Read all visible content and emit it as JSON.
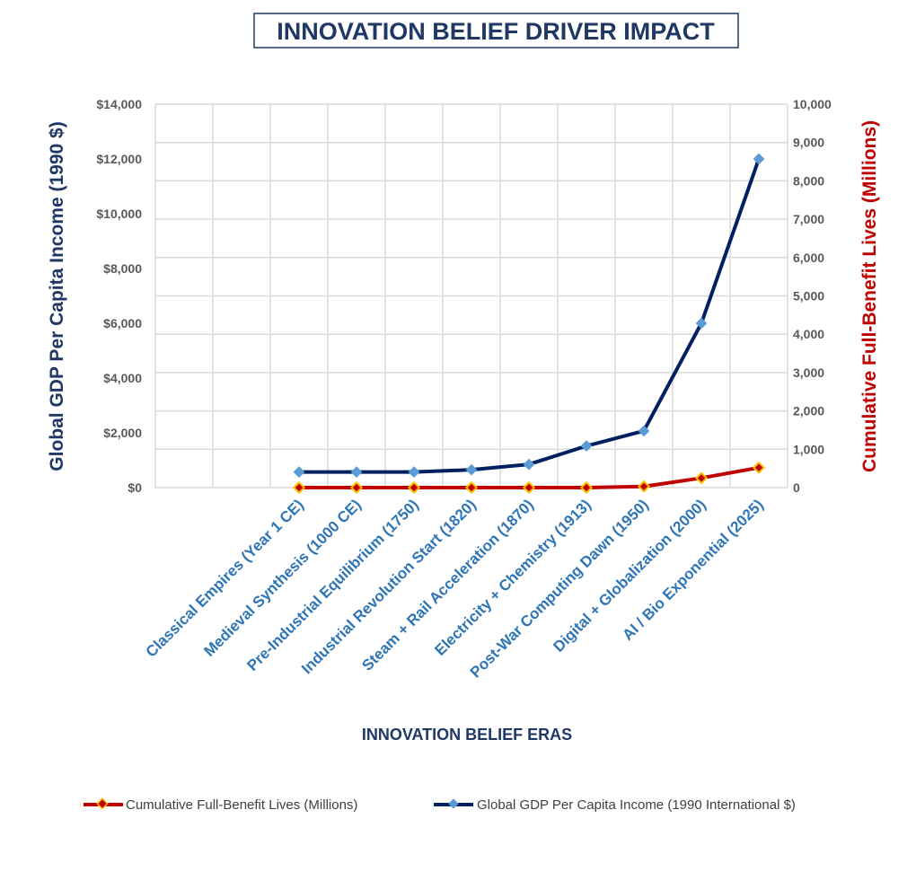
{
  "chart_data": {
    "type": "line",
    "title": "INNOVATION BELIEF DRIVER IMPACT",
    "xlabel": "INNOVATION BELIEF ERAS",
    "ylabel": "Global GDP Per Capita Income (1990 $)",
    "y2label": "Cumulative Full-Benefit Lives (Millions)",
    "categories": [
      "",
      "",
      "Classical Empires (Year 1 CE)",
      "Medieval Synthesis (1000 CE)",
      "Pre-Industrial Equilibrium (1750)",
      "Industrial Revolution Start (1820)",
      "Steam + Rail Acceleration (1870)",
      "Electricity + Chemistry (1913)",
      "Post-War Computing Dawn (1950)",
      "Digital + Globalization (2000)",
      "AI / Bio Exponential (2025)"
    ],
    "ylim": [
      0,
      14000
    ],
    "y2lim": [
      0,
      10000
    ],
    "yticks": [
      "$0",
      "$2,000",
      "$4,000",
      "$6,000",
      "$8,000",
      "$10,000",
      "$12,000",
      "$14,000"
    ],
    "y2ticks": [
      "0",
      "1,000",
      "2,000",
      "3,000",
      "4,000",
      "5,000",
      "6,000",
      "7,000",
      "8,000",
      "9,000",
      "10,000"
    ],
    "grid": true,
    "legend_position": "bottom",
    "series": [
      {
        "name": "Cumulative Full-Benefit Lives (Millions)",
        "axis": "right",
        "color": "#c00000",
        "marker_color": "#c00000",
        "marker_edge": "#ffc000",
        "values": [
          null,
          null,
          0,
          0,
          0,
          0,
          0,
          0,
          30,
          250,
          520
        ]
      },
      {
        "name": "Global GDP Per Capita Income (1990 International $)",
        "axis": "left",
        "color": "#002060",
        "marker_color": "#5b9bd5",
        "marker_edge": "#5b9bd5",
        "values": [
          null,
          null,
          570,
          570,
          570,
          650,
          850,
          1520,
          2070,
          6000,
          12000
        ]
      }
    ]
  }
}
